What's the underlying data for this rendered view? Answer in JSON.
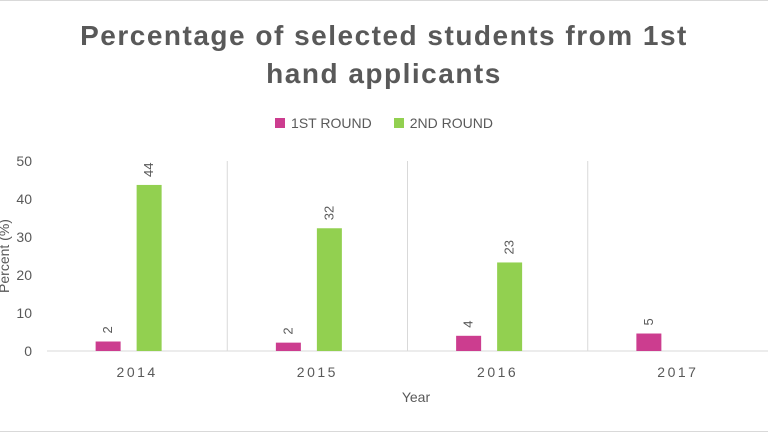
{
  "chart_data": {
    "type": "bar",
    "title_line1": "Percentage of selected students from 1st",
    "title_line2": "hand applicants",
    "xlabel": "Year",
    "ylabel": "Percent (%)",
    "categories": [
      "2014",
      "2015",
      "2016",
      "2017"
    ],
    "ylim": [
      0,
      50
    ],
    "yticks": [
      0,
      10,
      20,
      30,
      40,
      50
    ],
    "grid": "vertical separators between categories",
    "legend_position": "top",
    "series": [
      {
        "name": "1ST ROUND",
        "color": "#cc3d8f",
        "values": [
          2.5,
          2.2,
          4.0,
          4.6
        ],
        "labels": [
          "2",
          "2",
          "4",
          "5"
        ]
      },
      {
        "name": "2ND ROUND",
        "color": "#92d050",
        "values": [
          43.7,
          32.3,
          23.3,
          null
        ],
        "labels": [
          "44",
          "32",
          "23",
          ""
        ]
      }
    ]
  }
}
